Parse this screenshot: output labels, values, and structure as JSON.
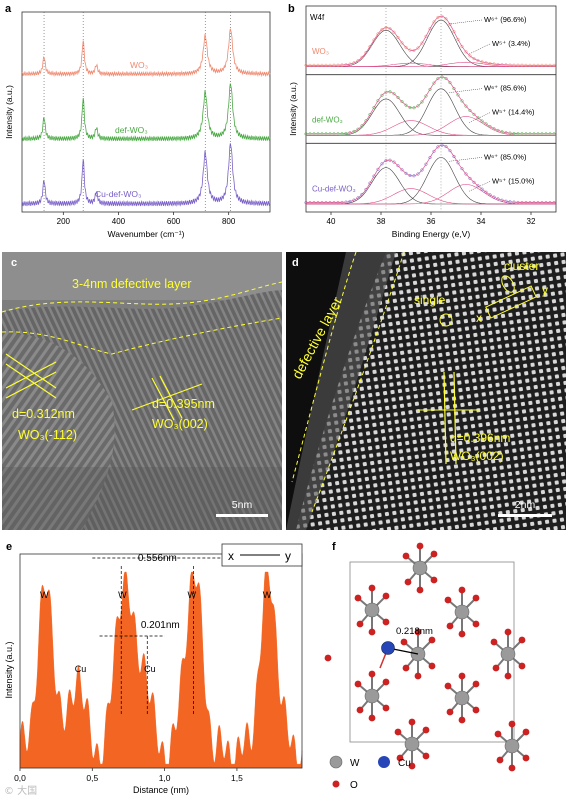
{
  "panels": {
    "a": {
      "label": "a",
      "ylabel": "Intensity (a.u.)",
      "xlabel": "Wavenumber (cm⁻¹)",
      "xticks": [
        "200",
        "400",
        "600",
        "800"
      ],
      "series": [
        {
          "name": "WO₃",
          "color": "#f08a70"
        },
        {
          "name": "def-WO₃",
          "color": "#4aaa44"
        },
        {
          "name": "Cu-def-WO₃",
          "color": "#7a60c8"
        }
      ]
    },
    "b": {
      "label": "b",
      "core": "W4f",
      "ylabel": "Intensity (a.u.)",
      "xlabel": "Binding Energy (e,V)",
      "xticks": [
        "40",
        "38",
        "36",
        "34",
        "32"
      ],
      "subplots": [
        {
          "sample": "WO₃",
          "color": "#f08a70",
          "w6": "W⁶⁺ (96.6%)",
          "w5": "W⁵⁺ (3.4%)"
        },
        {
          "sample": "def-WO₃",
          "color": "#4aaa44",
          "w6": "W⁶⁺ (85.6%)",
          "w5": "W⁵⁺ (14.4%)"
        },
        {
          "sample": "Cu-def-WO₃",
          "color": "#7a60c8",
          "w6": "W⁶⁺ (85.0%)",
          "w5": "W⁵⁺ (15.0%)"
        }
      ]
    },
    "c": {
      "label": "c",
      "layer": "3-4nm defective layer",
      "d1": "d=0.312nm",
      "p1": "WO₃(-112)",
      "d2": "d=0.395nm",
      "p2": "WO₃(002)",
      "scale": "5nm",
      "annotation_color": "#ffff33"
    },
    "d": {
      "label": "d",
      "layer": "defective layer",
      "single": "single",
      "cluster": "cluster",
      "x": "x",
      "y": "y",
      "d": "d=0.396nm",
      "plane": "WO₃(002)",
      "scale": "2nm"
    },
    "e": {
      "label": "e",
      "ylabel": "Intensity (a.u.)",
      "xlabel": "Distance (nm)",
      "xticks": [
        "0,0",
        "0,5",
        "1,0",
        "1,5"
      ],
      "d1": "0.556nm",
      "d2": "0.201nm",
      "axis_x": "x",
      "axis_y": "y",
      "atoms": [
        "W",
        "W",
        "W",
        "W"
      ],
      "cu": [
        "Cu",
        "Cu"
      ],
      "fill_color": "#f26522"
    },
    "f": {
      "label": "f",
      "bond": "0.218nm",
      "legend": [
        {
          "name": "W",
          "color": "#9a9a9a"
        },
        {
          "name": "Cu",
          "color": "#2646b8"
        },
        {
          "name": "O",
          "color": "#cc2222"
        }
      ]
    }
  },
  "chart_data": [
    {
      "type": "line",
      "title": "",
      "xlabel": "Wavenumber (cm⁻¹)",
      "ylabel": "Intensity (a.u.)",
      "xlim": [
        50,
        950
      ],
      "series": [
        {
          "name": "WO₃",
          "peaks": [
            {
              "x": 130,
              "h": 0.4
            },
            {
              "x": 272,
              "h": 0.75
            },
            {
              "x": 320,
              "h": 0.2
            },
            {
              "x": 715,
              "h": 0.85
            },
            {
              "x": 807,
              "h": 1.0
            }
          ]
        },
        {
          "name": "def-WO₃",
          "peaks": [
            {
              "x": 130,
              "h": 0.4
            },
            {
              "x": 272,
              "h": 0.75
            },
            {
              "x": 320,
              "h": 0.2
            },
            {
              "x": 715,
              "h": 0.85
            },
            {
              "x": 807,
              "h": 1.0
            }
          ]
        },
        {
          "name": "Cu-def-WO₃",
          "peaks": [
            {
              "x": 130,
              "h": 0.4
            },
            {
              "x": 272,
              "h": 0.75
            },
            {
              "x": 320,
              "h": 0.2
            },
            {
              "x": 715,
              "h": 0.85
            },
            {
              "x": 807,
              "h": 1.0
            }
          ]
        }
      ]
    },
    {
      "type": "line",
      "title": "",
      "xlabel": "Binding Energy (e,V)",
      "ylabel": "Intensity (a.u.)",
      "xlim": [
        41,
        31
      ],
      "peaks_eV": {
        "W6_7/2": 35.6,
        "W6_5/2": 37.8,
        "W5_7/2": 34.6,
        "W5_5/2": 36.8
      },
      "series": [
        {
          "name": "WO₃",
          "W6": 96.6,
          "W5": 3.4
        },
        {
          "name": "def-WO₃",
          "W6": 85.6,
          "W5": 14.4
        },
        {
          "name": "Cu-def-WO₃",
          "W6": 85.0,
          "W5": 15.0
        }
      ]
    },
    {
      "type": "area",
      "title": "",
      "xlabel": "Distance (nm)",
      "ylabel": "Intensity (a.u.)",
      "xlim": [
        0,
        1.95
      ],
      "peaks": [
        {
          "x": 0.18,
          "h": 0.82,
          "label": "W"
        },
        {
          "x": 0.4,
          "h": 0.42,
          "label": "Cu"
        },
        {
          "x": 0.72,
          "h": 0.9,
          "label": "W"
        },
        {
          "x": 0.86,
          "h": 0.42,
          "label": "Cu"
        },
        {
          "x": 1.2,
          "h": 0.92,
          "label": "W"
        },
        {
          "x": 1.72,
          "h": 0.88,
          "label": "W"
        }
      ]
    }
  ]
}
